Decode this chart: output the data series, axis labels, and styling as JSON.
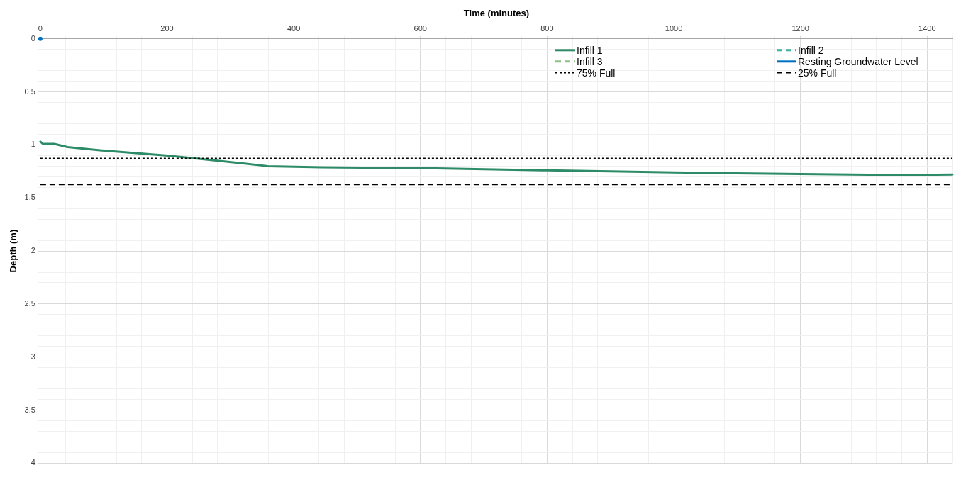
{
  "chart_data": {
    "type": "line",
    "xlabel": "Time (minutes)",
    "ylabel": "Depth (m)",
    "xlim": [
      0,
      1440
    ],
    "xticks": [
      0,
      {
        "value": 40,
        "label": null
      },
      {
        "value": 80,
        "label": null
      },
      {
        "value": 120,
        "label": null
      },
      {
        "value": 160,
        "label": null
      },
      200,
      {
        "value": 240,
        "label": null
      },
      {
        "value": 280,
        "label": null
      },
      {
        "value": 320,
        "label": null
      },
      {
        "value": 360,
        "label": null
      },
      400,
      {
        "value": 440,
        "label": null
      },
      {
        "value": 480,
        "label": null
      },
      {
        "value": 520,
        "label": null
      },
      {
        "value": 560,
        "label": null
      },
      600,
      {
        "value": 640,
        "label": null
      },
      {
        "value": 680,
        "label": null
      },
      {
        "value": 720,
        "label": null
      },
      {
        "value": 760,
        "label": null
      },
      800,
      {
        "value": 840,
        "label": null
      },
      {
        "value": 880,
        "label": null
      },
      {
        "value": 920,
        "label": null
      },
      {
        "value": 960,
        "label": null
      },
      1000,
      {
        "value": 1040,
        "label": null
      },
      {
        "value": 1080,
        "label": null
      },
      {
        "value": 1120,
        "label": null
      },
      {
        "value": 1160,
        "label": null
      },
      1200,
      {
        "value": 1240,
        "label": null
      },
      {
        "value": 1280,
        "label": null
      },
      {
        "value": 1320,
        "label": null
      },
      {
        "value": 1360,
        "label": null
      },
      1400,
      {
        "value": 1440,
        "label": null
      }
    ],
    "ylim": [
      4,
      0
    ],
    "yticks": [
      0,
      {
        "value": 0.1,
        "label": null
      },
      {
        "value": 0.2,
        "label": null
      },
      {
        "value": 0.3,
        "label": null
      },
      {
        "value": 0.4,
        "label": null
      },
      0.5,
      {
        "value": 0.6,
        "label": null
      },
      {
        "value": 0.7,
        "label": null
      },
      {
        "value": 0.8,
        "label": null
      },
      {
        "value": 0.9,
        "label": null
      },
      1,
      {
        "value": 1.1,
        "label": null
      },
      {
        "value": 1.2,
        "label": null
      },
      {
        "value": 1.3,
        "label": null
      },
      {
        "value": 1.4,
        "label": null
      },
      1.5,
      {
        "value": 1.6,
        "label": null
      },
      {
        "value": 1.7,
        "label": null
      },
      {
        "value": 1.8,
        "label": null
      },
      {
        "value": 1.9,
        "label": null
      },
      2,
      {
        "value": 2.1,
        "label": null
      },
      {
        "value": 2.2,
        "label": null
      },
      {
        "value": 2.3,
        "label": null
      },
      {
        "value": 2.4,
        "label": null
      },
      2.5,
      {
        "value": 2.6,
        "label": null
      },
      {
        "value": 2.7,
        "label": null
      },
      {
        "value": 2.8,
        "label": null
      },
      {
        "value": 2.9,
        "label": null
      },
      3,
      {
        "value": 3.1,
        "label": null
      },
      {
        "value": 3.2,
        "label": null
      },
      {
        "value": 3.3,
        "label": null
      },
      {
        "value": 3.4,
        "label": null
      },
      3.5,
      {
        "value": 3.6,
        "label": null
      },
      {
        "value": 3.7,
        "label": null
      },
      {
        "value": 3.8,
        "label": null
      },
      {
        "value": 3.9,
        "label": null
      },
      4
    ],
    "grid": true,
    "legend": "top right",
    "marker": "none",
    "series": [
      {
        "name": "Infill 1",
        "color": "#2e8b68",
        "line_style": "solid",
        "x": [
          0,
          4,
          22,
          43,
          94,
          201,
          315,
          359,
          444,
          610,
          800,
          1000,
          1200,
          1360,
          1440
        ],
        "values": [
          0.97,
          0.99,
          0.99,
          1.02,
          1.05,
          1.1,
          1.17,
          1.2,
          1.21,
          1.22,
          1.24,
          1.26,
          1.275,
          1.285,
          1.28
        ]
      },
      {
        "name": "Infill 2",
        "color": "#3ab0a0",
        "line_style": "dashed"
      },
      {
        "name": "Infill 3",
        "color": "#8fc08a",
        "line_style": "dashed"
      },
      {
        "name": "Resting Groundwater Level",
        "color": "#0070c0",
        "line_style": "solid",
        "marker": "circle",
        "x": [
          0
        ],
        "values": [
          0
        ]
      }
    ],
    "ref_lines": [
      {
        "axis": "y",
        "value": 1.125,
        "label": "75% Full",
        "color": "#000000",
        "line_style": "dotted"
      },
      {
        "axis": "y",
        "value": 1.375,
        "label": "25% Full",
        "color": "#000000",
        "line_style": "dashed"
      }
    ]
  }
}
